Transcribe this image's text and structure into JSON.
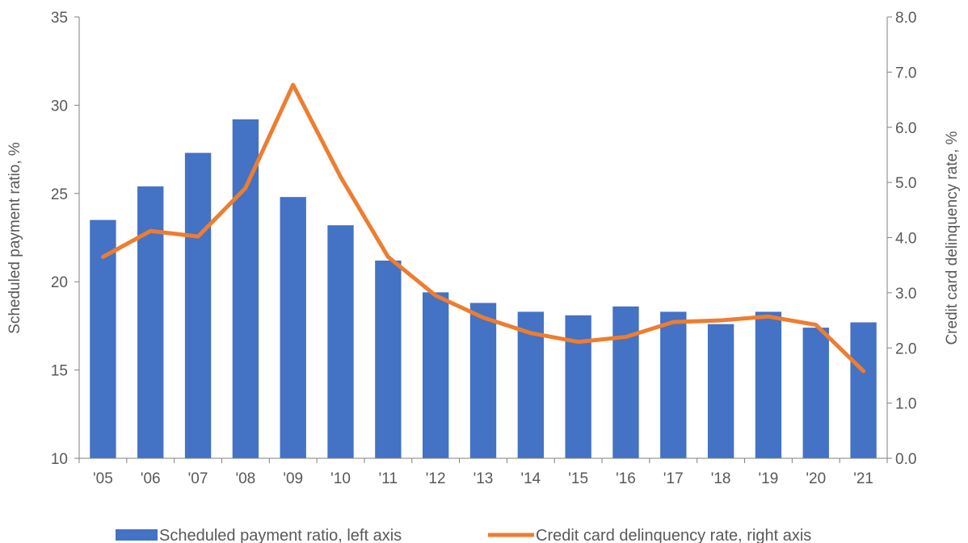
{
  "chart_data": {
    "type": "bar+line",
    "categories": [
      "'05",
      "'06",
      "'07",
      "'08",
      "'09",
      "'10",
      "'11",
      "'12",
      "'13",
      "'14",
      "'15",
      "'16",
      "'17",
      "'18",
      "'19",
      "'20",
      "'21"
    ],
    "series": [
      {
        "name": "Scheduled payment ratio, left axis",
        "type": "bar",
        "axis": "left",
        "color": "#4472C4",
        "values": [
          23.5,
          25.4,
          27.3,
          29.2,
          24.8,
          23.2,
          21.2,
          19.4,
          18.8,
          18.3,
          18.1,
          18.6,
          18.3,
          17.6,
          18.3,
          17.4,
          17.7
        ]
      },
      {
        "name": "Credit card delinquency rate, right axis",
        "type": "line",
        "axis": "right",
        "color": "#ED7D31",
        "values": [
          3.65,
          4.12,
          4.02,
          4.9,
          6.77,
          5.1,
          3.65,
          2.95,
          2.55,
          2.27,
          2.11,
          2.2,
          2.47,
          2.5,
          2.57,
          2.42,
          1.58
        ]
      }
    ],
    "y_left": {
      "label": "Scheduled payment ratio, %",
      "range": [
        10,
        35
      ],
      "ticks": [
        "10",
        "15",
        "20",
        "25",
        "30",
        "35"
      ]
    },
    "y_right": {
      "label": "Credit card delinquency rate, %",
      "range": [
        0,
        8
      ],
      "ticks": [
        "0.0",
        "1.0",
        "2.0",
        "3.0",
        "4.0",
        "5.0",
        "6.0",
        "7.0",
        "8.0"
      ]
    },
    "grid": false,
    "legend": "bottom"
  }
}
